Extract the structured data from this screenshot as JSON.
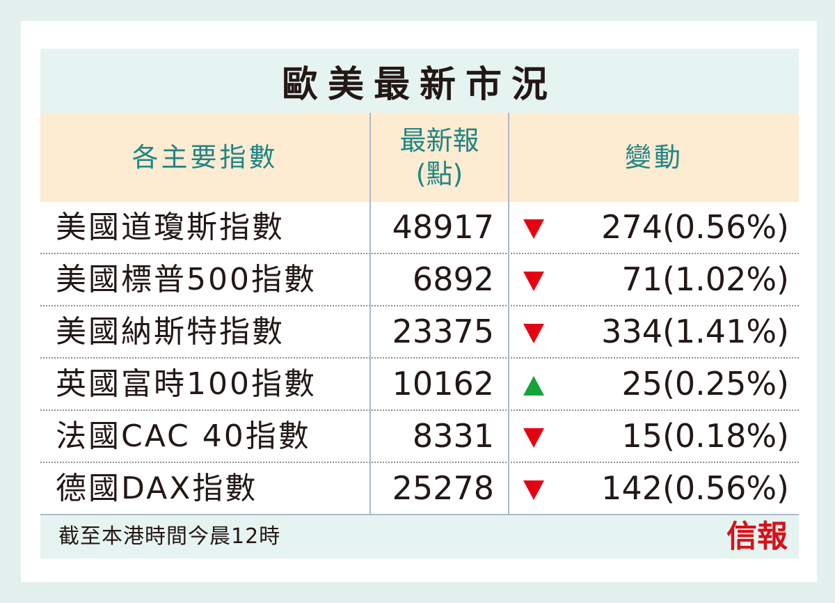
{
  "title": "歐美最新市況",
  "headers": {
    "index": "各主要指數",
    "latest_line1": "最新報",
    "latest_line2": "(點)",
    "change": "變動"
  },
  "rows": [
    {
      "name": "美國道瓊斯指數",
      "value": "48917",
      "direction": "down",
      "change": "274(0.56%)"
    },
    {
      "name": "美國標普500指數",
      "value": "6892",
      "direction": "down",
      "change": "71(1.02%)"
    },
    {
      "name": "美國納斯特指數",
      "value": "23375",
      "direction": "down",
      "change": "334(1.41%)"
    },
    {
      "name": "英國富時100指數",
      "value": "10162",
      "direction": "up",
      "change": "25(0.25%)"
    },
    {
      "name": "法國CAC 40指數",
      "value": "8331",
      "direction": "down",
      "change": "15(0.18%)"
    },
    {
      "name": "德國DAX指數",
      "value": "25278",
      "direction": "down",
      "change": "142(0.56%)"
    }
  ],
  "footer": {
    "note": "截至本港時間今晨12時",
    "logo": "信報"
  },
  "colors": {
    "down": "#e60012",
    "up": "#13a538",
    "header_text": "#1f8585",
    "header_bg": "#fdebd2",
    "panel_bg": "#e6f4f1",
    "logo": "#d8101a"
  },
  "icons": {
    "down": "down-triangle-icon",
    "up": "up-triangle-icon"
  }
}
